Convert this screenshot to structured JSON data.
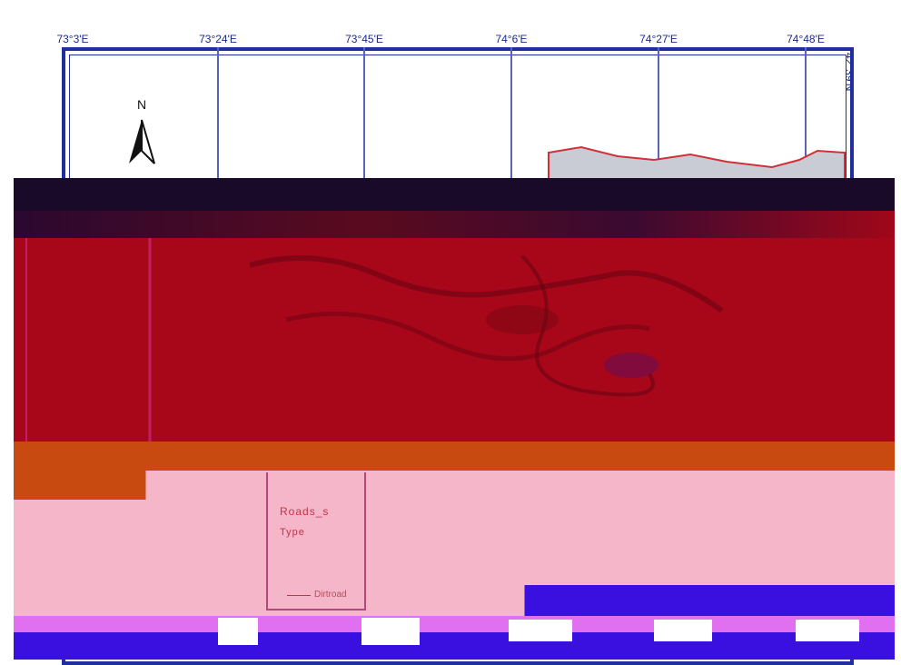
{
  "map": {
    "top_ticks": [
      "73°3'E",
      "73°24'E",
      "73°45'E",
      "74°6'E",
      "74°27'E",
      "74°48'E"
    ],
    "right_tick": "42°39'N",
    "north_arrow_label": "N",
    "legend": {
      "title": "Roads_s",
      "subtitle": "Type",
      "items": [
        {
          "label": "Dirtroad",
          "color": "#c0344c"
        }
      ]
    },
    "colors": {
      "frame": "#1f2fa0",
      "dark_band": "#1a0a2a",
      "terrain_red": "#a8071a",
      "orange_band": "#c84a10",
      "pink_band": "#f4b6c8",
      "violet_band": "#3a10e0",
      "boundary": "#d0303a"
    }
  }
}
